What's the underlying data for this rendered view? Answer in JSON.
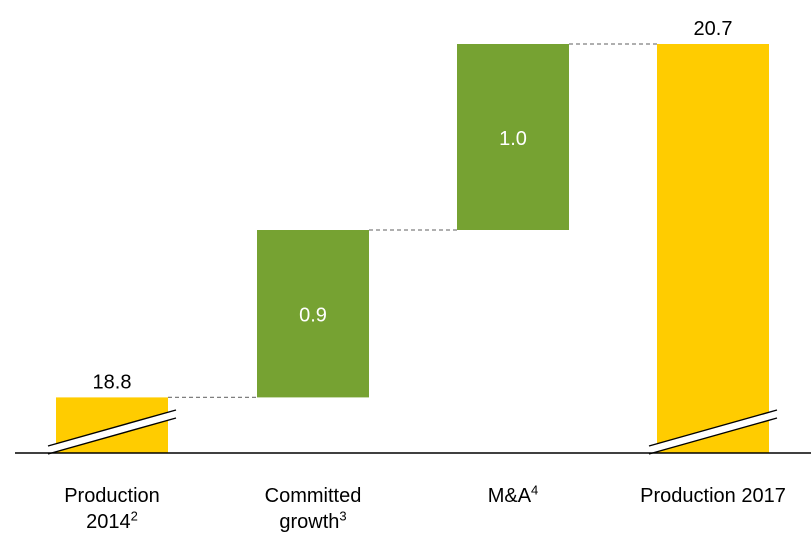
{
  "chart_data": {
    "type": "bar",
    "subtype": "waterfall",
    "categories": [
      {
        "lines": [
          {
            "text": "Production",
            "sup": ""
          },
          {
            "text": "2014",
            "sup": "2"
          }
        ]
      },
      {
        "lines": [
          {
            "text": "Committed",
            "sup": ""
          },
          {
            "text": "growth",
            "sup": "3"
          }
        ]
      },
      {
        "lines": [
          {
            "text": "M&A",
            "sup": "4"
          }
        ]
      },
      {
        "lines": [
          {
            "text": "Production 2017",
            "sup": ""
          }
        ]
      }
    ],
    "bars": [
      {
        "kind": "total",
        "base": 0,
        "value": 18.8,
        "label": "18.8",
        "label_position": "above",
        "broken_axis": true
      },
      {
        "kind": "increase",
        "base": 18.8,
        "value": 0.9,
        "label": "0.9",
        "label_position": "inside",
        "broken_axis": false
      },
      {
        "kind": "increase",
        "base": 19.7,
        "value": 1.0,
        "label": "1.0",
        "label_position": "inside",
        "broken_axis": false
      },
      {
        "kind": "total",
        "base": 0,
        "value": 20.7,
        "label": "20.7",
        "label_position": "above",
        "broken_axis": true
      }
    ],
    "connectors": [
      {
        "from": 0,
        "to": 1,
        "level": 18.8
      },
      {
        "from": 1,
        "to": 2,
        "level": 19.7
      },
      {
        "from": 2,
        "to": 3,
        "level": 20.7
      }
    ],
    "visible_range": [
      18.55,
      20.7
    ],
    "grid": false,
    "legend": "none",
    "colors": {
      "total": "#FFCC00",
      "increase": "#76A232",
      "inside_label": "#ffffff",
      "outside_label": "#000000",
      "axis": "#000000",
      "connector": "#7f7f7f"
    }
  }
}
